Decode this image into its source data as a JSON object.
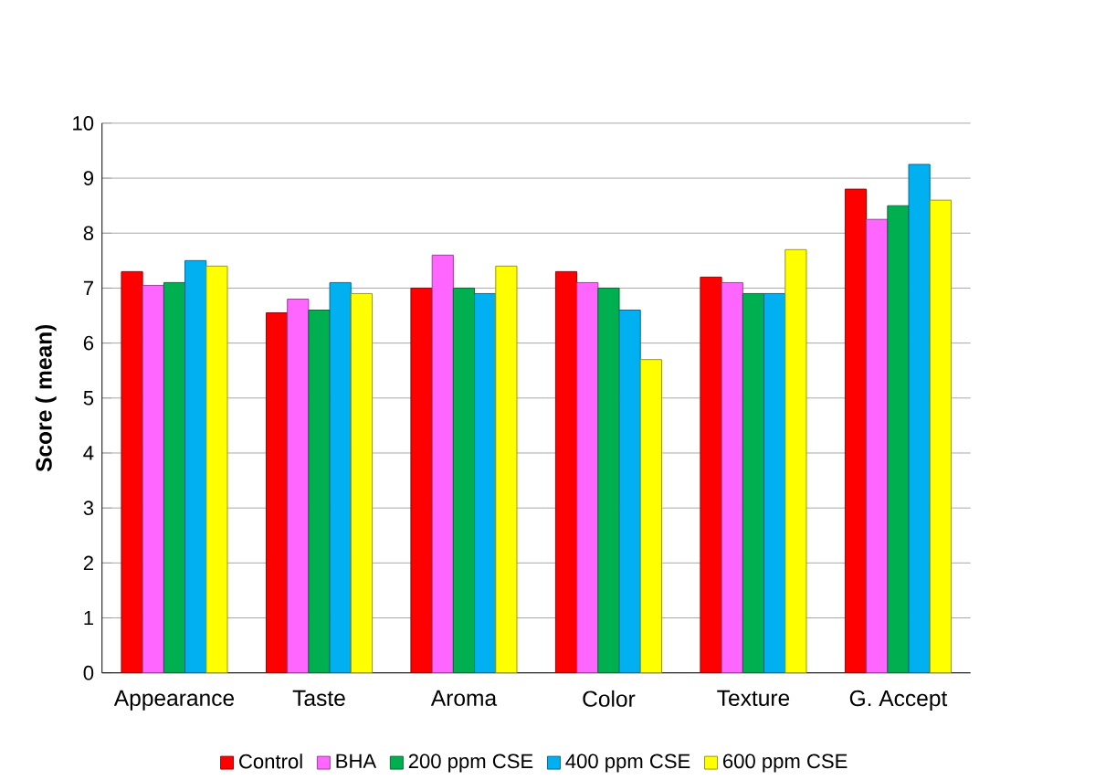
{
  "chart_data": {
    "type": "bar",
    "ylabel": "Score ( mean)",
    "categories": [
      "Appearance",
      "Taste",
      "Aroma",
      "Color",
      "Texture",
      "G. Accept"
    ],
    "series": [
      {
        "name": "Control",
        "color": "#ff0000",
        "values": [
          7.3,
          6.55,
          7.0,
          7.3,
          7.2,
          8.8
        ]
      },
      {
        "name": "BHA",
        "color": "#ff66ff",
        "values": [
          7.05,
          6.8,
          7.6,
          7.1,
          7.1,
          8.25
        ]
      },
      {
        "name": "200 ppm CSE",
        "color": "#00b050",
        "values": [
          7.1,
          6.6,
          7.0,
          7.0,
          6.9,
          8.5
        ]
      },
      {
        "name": "400 ppm CSE",
        "color": "#00b0f0",
        "values": [
          7.5,
          7.1,
          6.9,
          6.6,
          6.9,
          9.25
        ]
      },
      {
        "name": "600 ppm CSE",
        "color": "#ffff00",
        "values": [
          7.4,
          6.9,
          7.4,
          5.7,
          7.7,
          8.6
        ]
      }
    ],
    "ylim": [
      0,
      10
    ],
    "yticks": [
      0,
      1,
      2,
      3,
      4,
      5,
      6,
      7,
      8,
      9,
      10
    ],
    "grid": "y",
    "legend": "bottom"
  }
}
